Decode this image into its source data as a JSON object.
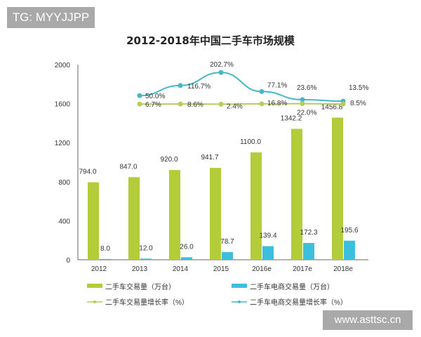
{
  "watermark_top": "TG: MYYJJPP",
  "watermark_bottom": "www.asttsc.cn",
  "chart_data": {
    "type": "bar",
    "title": "2012-2018年中国二手车市场规模",
    "categories": [
      "2012",
      "2013",
      "2014",
      "2015",
      "2016e",
      "2017e",
      "2018e"
    ],
    "ylim": [
      0,
      2000
    ],
    "yticks": [
      0,
      400,
      800,
      1200,
      1600,
      2000
    ],
    "grid": false,
    "legend_position": "bottom",
    "series": [
      {
        "name": "二手车交易量（万台）",
        "kind": "bar",
        "color": "#b3cc3a",
        "values": [
          794.0,
          847.0,
          920.0,
          941.7,
          1100.0,
          1342.2,
          1456.8
        ]
      },
      {
        "name": "二手车电商交易量（万台）",
        "kind": "bar",
        "color": "#3bbfdd",
        "values": [
          8.0,
          12.0,
          26.0,
          78.7,
          139.4,
          172.3,
          195.6
        ]
      },
      {
        "name": "二手车交易量增长率（%）",
        "kind": "line",
        "color": "#b8cc5a",
        "values": [
          null,
          6.7,
          8.6,
          2.4,
          16.8,
          22.0,
          8.5
        ]
      },
      {
        "name": "二手车电商交易量增长率（%）",
        "kind": "line",
        "color": "#45b8c8",
        "values": [
          null,
          50.0,
          116.7,
          202.7,
          77.1,
          23.6,
          13.5
        ]
      }
    ]
  }
}
